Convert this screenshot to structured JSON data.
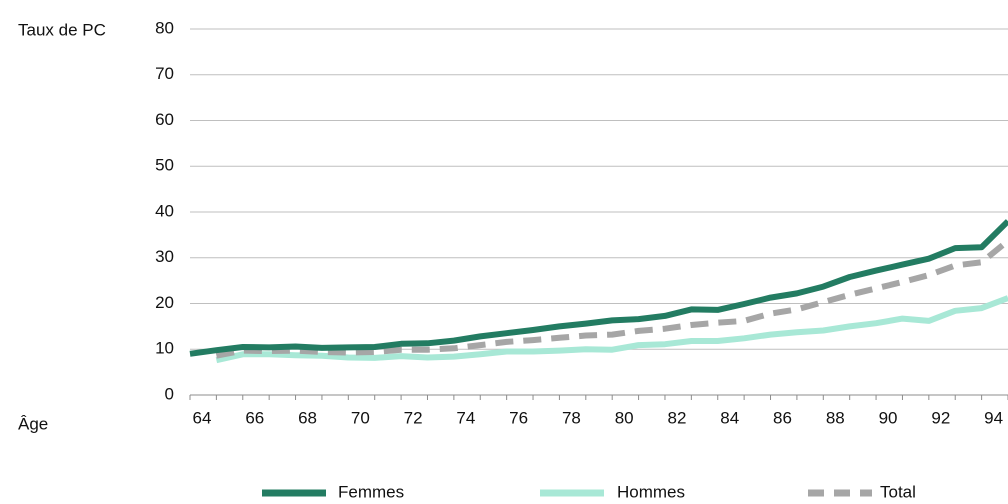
{
  "chart_data": {
    "type": "line",
    "ylabel": "Taux de PC",
    "xlabel": "Âge",
    "ylim": [
      0,
      80
    ],
    "xlim": [
      64,
      95
    ],
    "yticks": [
      0,
      10,
      20,
      30,
      40,
      50,
      60,
      70,
      80
    ],
    "xticks": [
      64,
      66,
      68,
      70,
      72,
      74,
      76,
      78,
      80,
      82,
      84,
      86,
      88,
      90,
      92,
      94
    ],
    "grid": "horizontal",
    "legend_position": "bottom",
    "series": [
      {
        "name": "Femmes",
        "color": "#237c62",
        "style": "solid",
        "x": [
          64,
          65,
          66,
          67,
          68,
          69,
          70,
          71,
          72,
          73,
          74,
          75,
          76,
          77,
          78,
          79,
          80,
          81,
          82,
          83,
          84,
          85,
          86,
          87,
          88,
          89,
          90,
          91,
          92,
          93,
          94,
          95
        ],
        "values": [
          9,
          9.8,
          10.5,
          10.4,
          10.6,
          10.3,
          10.4,
          10.5,
          11.2,
          11.3,
          11.9,
          12.8,
          13.5,
          14.2,
          15,
          15.6,
          16.3,
          16.6,
          17.3,
          18.7,
          18.6,
          19.9,
          21.3,
          22.2,
          23.7,
          25.8,
          27.2,
          28.5,
          29.8,
          32.1,
          32.3,
          38
        ]
      },
      {
        "name": "Hommes",
        "color": "#a8e8d6",
        "style": "solid",
        "x": [
          65,
          66,
          67,
          68,
          69,
          70,
          71,
          72,
          73,
          74,
          75,
          76,
          77,
          78,
          79,
          80,
          81,
          82,
          83,
          84,
          85,
          86,
          87,
          88,
          89,
          90,
          91,
          92,
          93,
          94,
          95
        ],
        "values": [
          7.6,
          8.9,
          8.9,
          8.7,
          8.6,
          8.2,
          8.1,
          8.5,
          8.2,
          8.4,
          8.9,
          9.5,
          9.5,
          9.7,
          10,
          9.9,
          10.9,
          11.1,
          11.8,
          11.8,
          12.4,
          13.2,
          13.7,
          14.1,
          15,
          15.7,
          16.7,
          16.2,
          18.4,
          19,
          21.2
        ]
      },
      {
        "name": "Total",
        "color": "#a6a6a6",
        "style": "dashed",
        "x": [
          65,
          66,
          67,
          68,
          69,
          70,
          71,
          72,
          73,
          74,
          75,
          76,
          77,
          78,
          79,
          80,
          81,
          82,
          83,
          84,
          85,
          86,
          87,
          88,
          89,
          90,
          91,
          92,
          93,
          94,
          95
        ],
        "values": [
          8.6,
          9.7,
          9.6,
          9.7,
          9.4,
          9.3,
          9.4,
          9.9,
          9.9,
          10.2,
          10.9,
          11.6,
          12,
          12.5,
          13,
          13.2,
          14,
          14.5,
          15.3,
          15.8,
          16.2,
          17.8,
          18.7,
          20.3,
          21.9,
          23.3,
          24.7,
          26.2,
          28.3,
          29,
          33.7
        ]
      }
    ]
  }
}
